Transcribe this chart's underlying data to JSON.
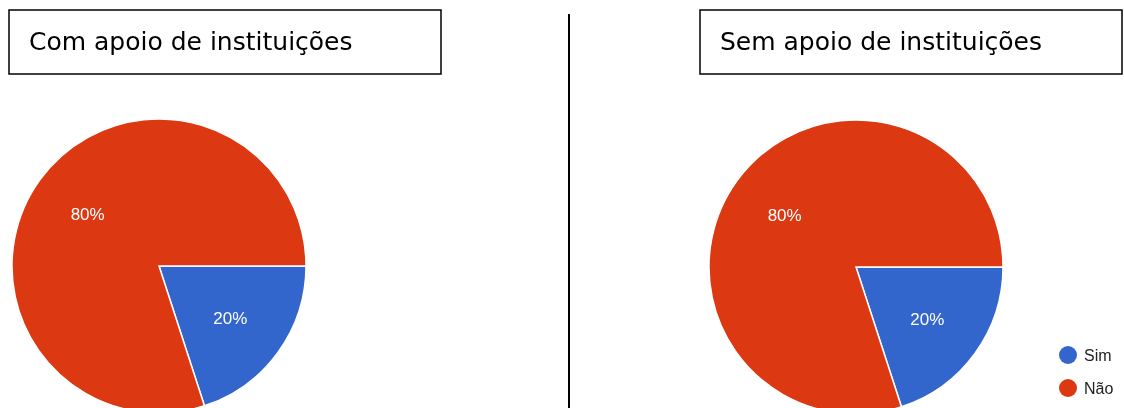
{
  "chart_data": [
    {
      "type": "pie",
      "title": "Com apoio de instituições",
      "categories": [
        null,
        null
      ],
      "values": [
        20,
        80
      ],
      "value_labels": [
        "20%",
        "80%"
      ],
      "colors": [
        "#3366cc",
        "#dc3912"
      ],
      "legend": false
    },
    {
      "type": "pie",
      "title": "Sem apoio de instituições",
      "categories": [
        "Sim",
        "Não"
      ],
      "values": [
        20,
        80
      ],
      "value_labels": [
        "20%",
        "80%"
      ],
      "colors": [
        "#3366cc",
        "#dc3912"
      ],
      "legend": "bottom right"
    }
  ]
}
